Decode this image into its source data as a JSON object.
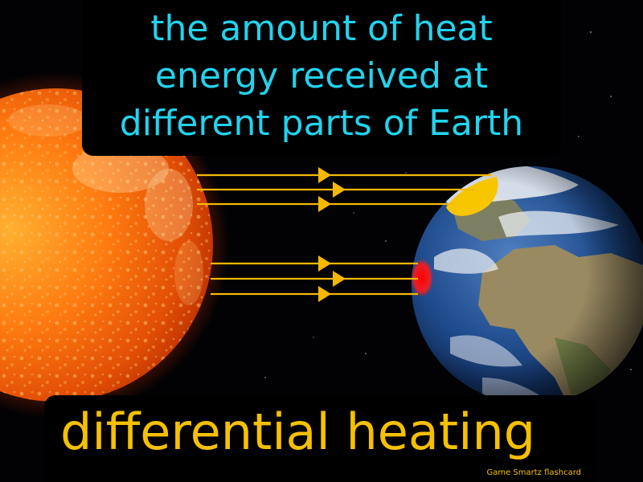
{
  "card": {
    "definition": "the amount of heat energy received at different parts of Earth",
    "term": "differential heating",
    "brand": "Game  Smartz  flashcard"
  },
  "colors": {
    "definition": "#22d3ee",
    "term": "#f5c000",
    "brand": "#f5c000",
    "rays": "#f5b800",
    "polar_spot": "#f7c600",
    "equator_spot": "#ff1a1a"
  },
  "icons": {
    "sun": "sun-icon",
    "earth": "earth-icon"
  }
}
